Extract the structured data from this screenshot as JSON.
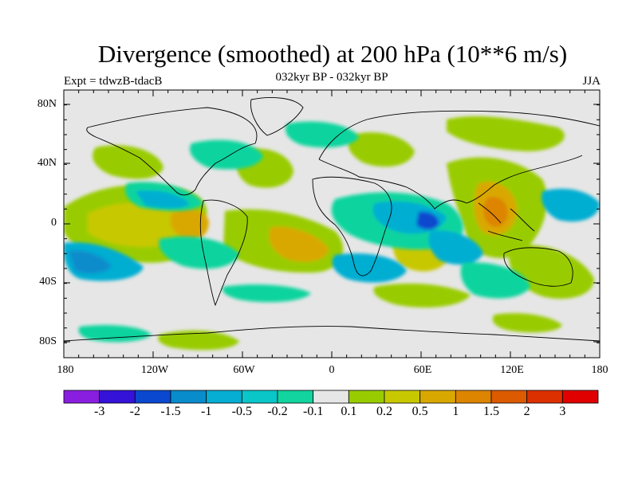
{
  "title": "Divergence (smoothed) at 200 hPa (10**6 m/s)",
  "subtitle_left": "Expt = tdwzB-tdacB",
  "subtitle_center": "032kyr BP - 032kyr BP",
  "subtitle_right": "JJA",
  "y_ticks": [
    "80N",
    "40N",
    "0",
    "40S",
    "80S"
  ],
  "x_ticks": [
    "180",
    "120W",
    "60W",
    "0",
    "60E",
    "120E",
    "180"
  ],
  "colorbar": {
    "labels": [
      "-3",
      "-2",
      "-1.5",
      "-1",
      "-0.5",
      "-0.2",
      "-0.1",
      "0.1",
      "0.2",
      "0.5",
      "1",
      "1.5",
      "2",
      "3"
    ],
    "colors": [
      "#8a1ee0",
      "#3512d8",
      "#0a48cf",
      "#098ccc",
      "#05aed2",
      "#0ac6c8",
      "#11d49e",
      "#e6e6e6",
      "#99cc00",
      "#c8c800",
      "#d9a800",
      "#dd8400",
      "#dc5a00",
      "#dc3000",
      "#e00000"
    ]
  },
  "map": {
    "background": "#e6e6e6",
    "x_range": [
      -180,
      180
    ],
    "y_range": [
      -90,
      90
    ]
  }
}
